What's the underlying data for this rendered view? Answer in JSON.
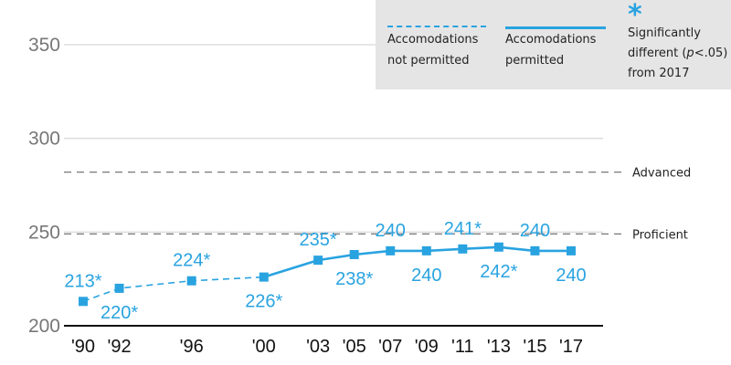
{
  "colors": {
    "series": "#29a3e0",
    "grid": "#dddddd",
    "axis": "#111111",
    "ref": "#777777",
    "legend_bg": "#e5e5e5",
    "tick": "#777777"
  },
  "legend": {
    "not_permitted_line1": "Accomodations",
    "not_permitted_line2": "not permitted",
    "permitted_line1": "Accomodations",
    "permitted_line2": "permitted",
    "sig_symbol": "*",
    "sig_line1": "Significantly",
    "sig_line2_pre": "different (",
    "sig_line2_p": "p",
    "sig_line2_post": "<.05)",
    "sig_line3": "from 2017"
  },
  "chart_data": {
    "type": "line",
    "ylim": [
      200,
      360
    ],
    "y_ticks": [
      200,
      250,
      300,
      350
    ],
    "grid": true,
    "x_years": [
      1990,
      1992,
      1996,
      2000,
      2003,
      2005,
      2007,
      2009,
      2011,
      2013,
      2015,
      2017
    ],
    "x_labels": [
      "'90",
      "'92",
      "'96",
      "'00",
      "'03",
      "'05",
      "'07",
      "'09",
      "'11",
      "'13",
      "'15",
      "'17"
    ],
    "reference_lines": [
      {
        "label": "Advanced",
        "value": 282
      },
      {
        "label": "Proficient",
        "value": 249
      }
    ],
    "series": [
      {
        "style": "dashed",
        "x": [
          1990,
          1992,
          1996,
          2000
        ],
        "y": [
          213,
          220,
          224,
          226
        ]
      },
      {
        "style": "solid",
        "x": [
          2000,
          2003,
          2005,
          2007,
          2009,
          2011,
          2013,
          2015,
          2017
        ],
        "y": [
          226,
          235,
          238,
          240,
          240,
          241,
          242,
          240,
          240
        ]
      }
    ],
    "data_labels": [
      {
        "x": 1990,
        "text": "213*",
        "pos": "above"
      },
      {
        "x": 1992,
        "text": "220*",
        "pos": "below"
      },
      {
        "x": 1996,
        "text": "224*",
        "pos": "above"
      },
      {
        "x": 2000,
        "text": "226*",
        "pos": "below"
      },
      {
        "x": 2003,
        "text": "235*",
        "pos": "above"
      },
      {
        "x": 2005,
        "text": "238*",
        "pos": "below"
      },
      {
        "x": 2007,
        "text": "240",
        "pos": "above"
      },
      {
        "x": 2009,
        "text": "240",
        "pos": "below"
      },
      {
        "x": 2011,
        "text": "241*",
        "pos": "above"
      },
      {
        "x": 2013,
        "text": "242*",
        "pos": "below"
      },
      {
        "x": 2015,
        "text": "240",
        "pos": "above"
      },
      {
        "x": 2017,
        "text": "240",
        "pos": "below"
      }
    ]
  }
}
